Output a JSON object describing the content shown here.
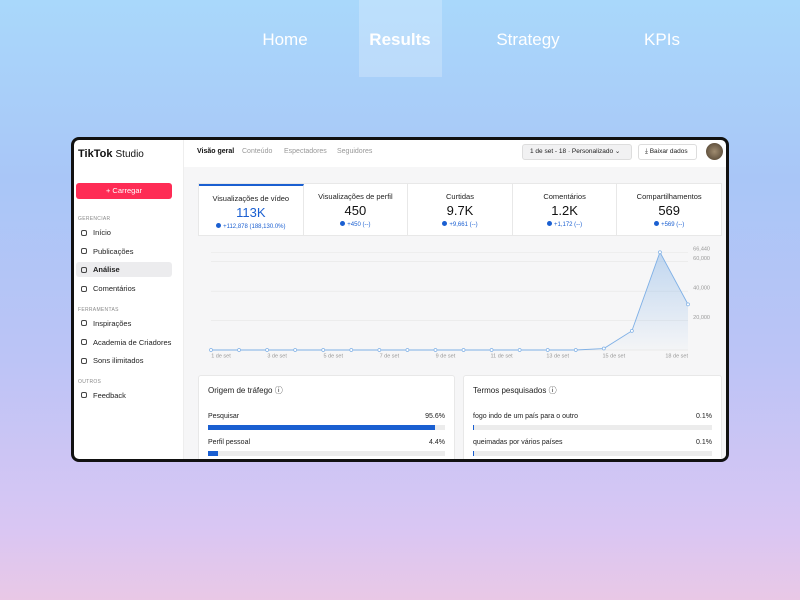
{
  "nav": {
    "items": [
      "Home",
      "Results",
      "Strategy",
      "KPIs"
    ],
    "active": 1
  },
  "app": {
    "logo": "TikTok",
    "logo_suffix": "Studio",
    "tabs": [
      "Visão geral",
      "Conteúdo",
      "Espectadores",
      "Seguidores"
    ],
    "active_tab": 0,
    "date_range": "1 de set - 18 · Personalizado",
    "download": "Baixar dados",
    "upload": "+ Carregar",
    "sidebar": [
      {
        "heading": "GERENCIAR",
        "items": [
          "Início",
          "Publicações",
          "Análise",
          "Comentários"
        ],
        "active": 2
      },
      {
        "heading": "FERRAMENTAS",
        "items": [
          "Inspirações",
          "Academia de Criadores",
          "Sons ilimitados"
        ]
      },
      {
        "heading": "OUTROS",
        "items": [
          "Feedback"
        ]
      }
    ],
    "metrics": [
      {
        "label": "Visualizações de vídeo",
        "value": "113K",
        "delta": "+112,878 (188,130.0%)"
      },
      {
        "label": "Visualizações de perfil",
        "value": "450",
        "delta": "+450 (--)"
      },
      {
        "label": "Curtidas",
        "value": "9.7K",
        "delta": "+9,661 (--)"
      },
      {
        "label": "Comentários",
        "value": "1.2K",
        "delta": "+1,172 (--)"
      },
      {
        "label": "Compartilhamentos",
        "value": "569",
        "delta": "+569 (--)"
      }
    ],
    "active_metric": 0
  },
  "chart_data": {
    "type": "line",
    "color": "#7fb0e6",
    "grid": true,
    "categories": [
      "1 de set",
      null,
      "3 de set",
      null,
      "5 de set",
      null,
      "7 de set",
      null,
      "9 de set",
      null,
      "11 de set",
      null,
      "13 de set",
      null,
      "15 de set",
      null,
      null,
      "18 de set"
    ],
    "values": [
      0,
      0,
      0,
      0,
      0,
      0,
      0,
      0,
      0,
      0,
      0,
      0,
      0,
      0,
      1000,
      13000,
      66440,
      31000
    ],
    "ylim": [
      0,
      70000
    ],
    "yticks": [
      {
        "value": 20000,
        "label": "20,000"
      },
      {
        "value": 40000,
        "label": "40,000"
      },
      {
        "value": 60000,
        "label": "60,000"
      },
      {
        "value": 66440,
        "label": "66,440"
      }
    ]
  },
  "traffic": {
    "title": "Origem de tráfego ⓘ",
    "categories": [
      "Pesquisar",
      "Perfil pessoal"
    ],
    "values": [
      95.6,
      4.4
    ],
    "value_labels": [
      "95.6%",
      "4.4%"
    ],
    "color": "#1a5fd1"
  },
  "terms": {
    "title": "Termos pesquisados ⓘ",
    "categories": [
      "fogo indo de um país para o outro",
      "queimadas por vários países"
    ],
    "values": [
      0.1,
      0.1
    ],
    "value_labels": [
      "0.1%",
      "0.1%"
    ],
    "color": "#1a5fd1"
  }
}
